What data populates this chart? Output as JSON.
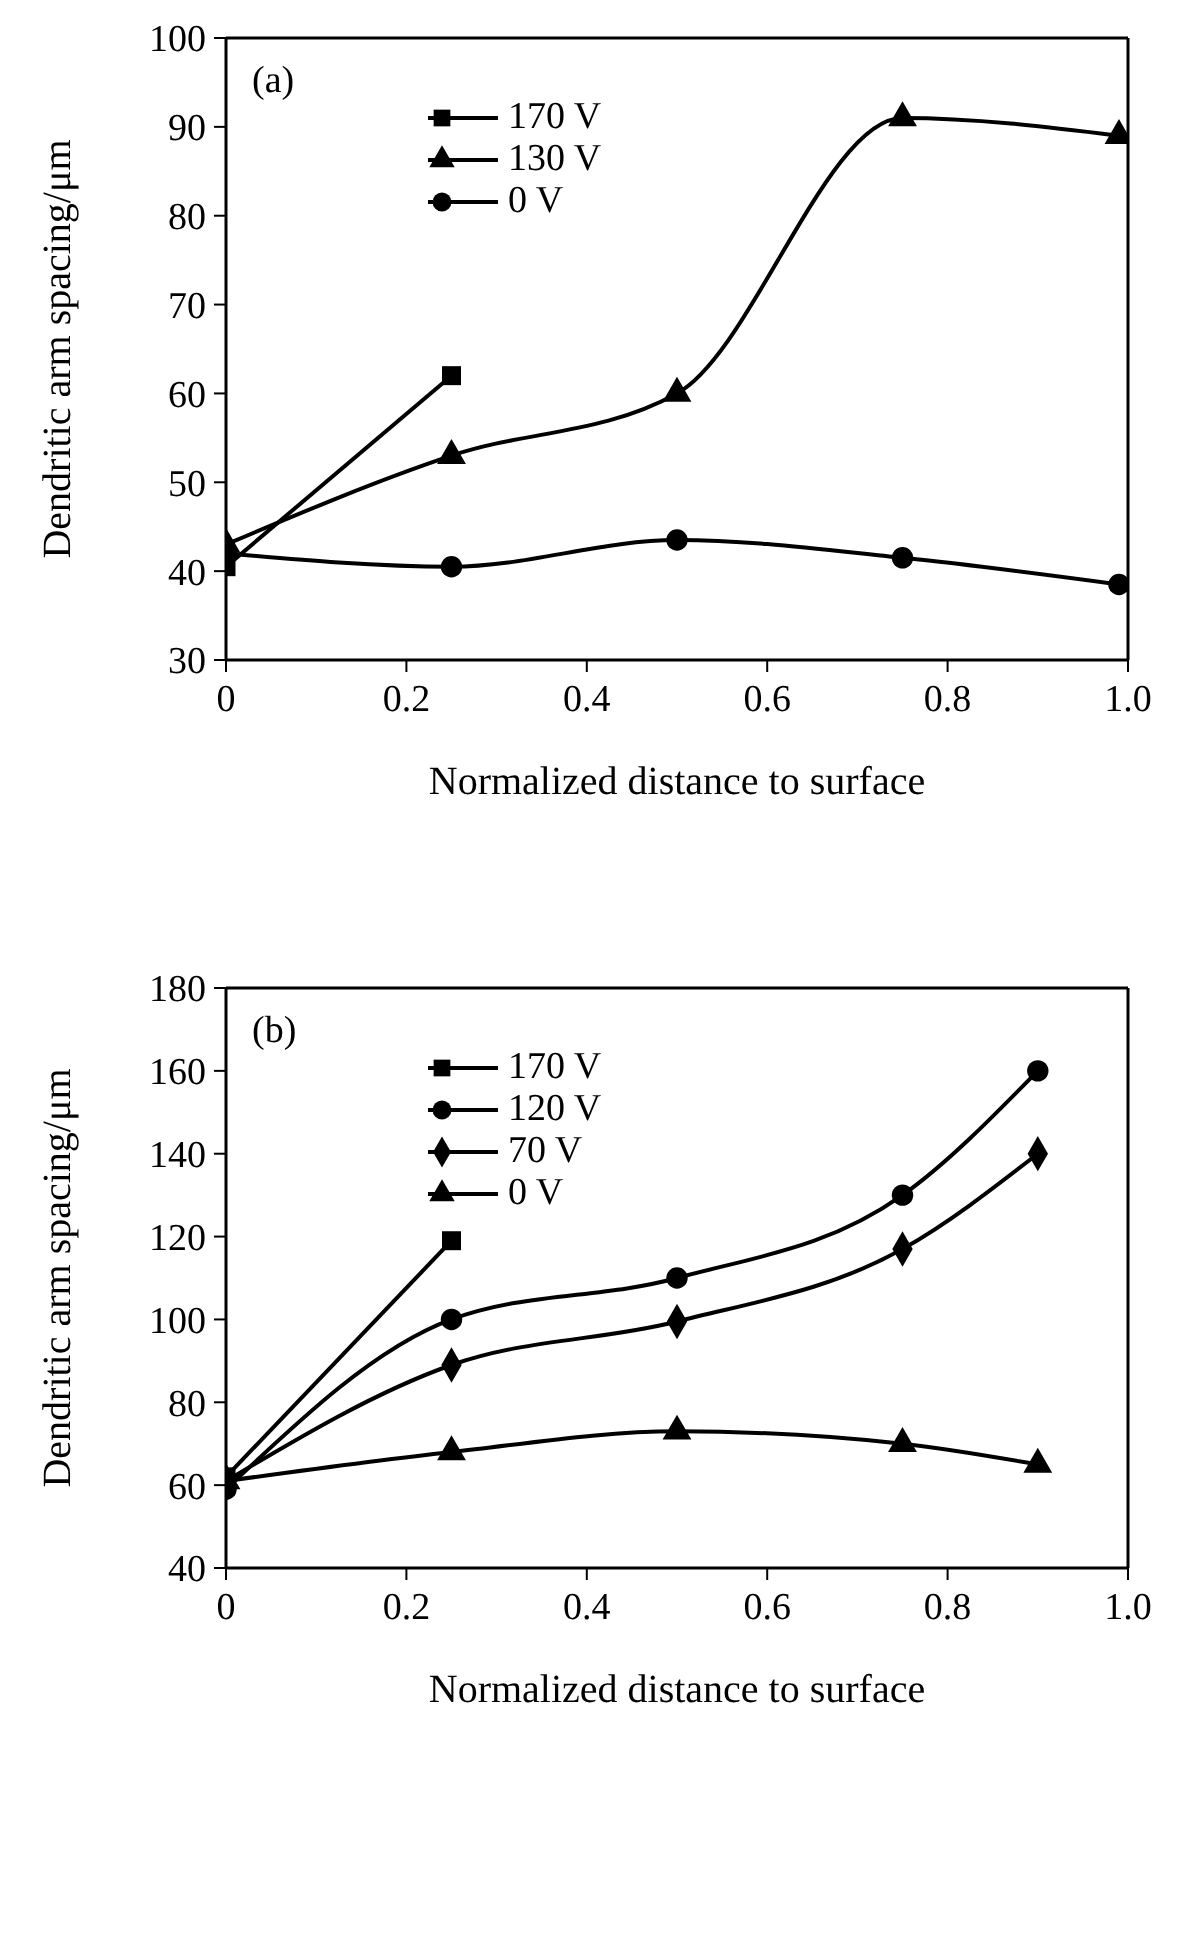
{
  "chart_data": [
    {
      "type": "line",
      "annotations": [
        "(a)"
      ],
      "xlabel": "Normalized distance to surface",
      "ylabel": "Dendritic arm spacing/μm",
      "xlim": [
        0,
        1
      ],
      "xticks": [
        0,
        0.2,
        0.4,
        0.6,
        0.8,
        {
          "value": 1,
          "label": "1.0"
        }
      ],
      "ylim": [
        30,
        100
      ],
      "yticks": [
        30,
        40,
        50,
        60,
        70,
        80,
        90,
        100
      ],
      "grid": false,
      "legend": "top left",
      "line_style": "solid",
      "series": [
        {
          "name": "170 V",
          "color": "#000000",
          "marker": "square",
          "x": [
            0,
            0.25
          ],
          "values": [
            40.5,
            62
          ]
        },
        {
          "name": "130 V",
          "color": "#000000",
          "marker": "triangle",
          "x": [
            0,
            0.25,
            0.5,
            0.75,
            0.99
          ],
          "values": [
            43,
            53,
            60,
            91,
            89
          ]
        },
        {
          "name": "0 V",
          "color": "#000000",
          "marker": "circle",
          "x": [
            0,
            0.25,
            0.5,
            0.75,
            0.99
          ],
          "values": [
            42,
            40.5,
            43.5,
            41.5,
            38.5
          ]
        }
      ]
    },
    {
      "type": "line",
      "annotations": [
        "(b)"
      ],
      "xlabel": "Normalized distance to surface",
      "ylabel": "Dendritic arm spacing/μm",
      "xlim": [
        0,
        1
      ],
      "xticks": [
        0,
        0.2,
        0.4,
        0.6,
        0.8,
        {
          "value": 1,
          "label": "1.0"
        }
      ],
      "ylim": [
        40,
        180
      ],
      "yticks": [
        40,
        60,
        80,
        100,
        120,
        140,
        160,
        180
      ],
      "grid": false,
      "legend": "top left",
      "line_style": "solid",
      "series": [
        {
          "name": "170 V",
          "color": "#000000",
          "marker": "square",
          "x": [
            0,
            0.25
          ],
          "values": [
            62,
            119
          ]
        },
        {
          "name": "120 V",
          "color": "#000000",
          "marker": "circle",
          "x": [
            0,
            0.25,
            0.5,
            0.75,
            0.9
          ],
          "values": [
            59,
            100,
            110,
            130,
            160
          ]
        },
        {
          "name": "70 V",
          "color": "#000000",
          "marker": "diamond",
          "x": [
            0,
            0.25,
            0.5,
            0.75,
            0.9
          ],
          "values": [
            61,
            89,
            99.5,
            117,
            140
          ]
        },
        {
          "name": "0 V",
          "color": "#000000",
          "marker": "triangle",
          "x": [
            0,
            0.25,
            0.5,
            0.75,
            0.9
          ],
          "values": [
            61,
            68,
            73,
            70,
            65
          ]
        }
      ]
    }
  ]
}
